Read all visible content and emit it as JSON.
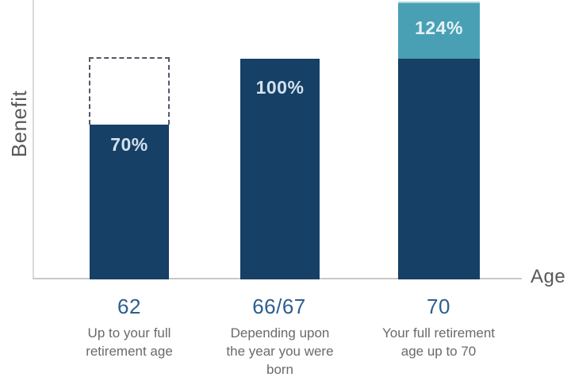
{
  "chart": {
    "y_axis_label": "Benefit",
    "x_axis_label": "Age",
    "bars": [
      {
        "tick": "62",
        "value_label": "70%",
        "caption_lines": [
          "Up to your full",
          "retirement age"
        ]
      },
      {
        "tick": "66/67",
        "value_label": "100%",
        "caption_lines": [
          "Depending upon",
          "the year you were",
          "born"
        ]
      },
      {
        "tick": "70",
        "value_label": "124%",
        "caption_lines": [
          "Your full retirement",
          "age up to 70"
        ]
      }
    ],
    "colors": {
      "bar_navy": "#164066",
      "bar_teal": "#49A0B4",
      "teal_top_highlight": "#A7D5DD",
      "bar_value_text": "#D3E1ED",
      "tick_blue": "#2D5E8E",
      "caption_gray": "#6A6A6A",
      "axis_label_gray": "#595959",
      "axis_line_gray": "#C8C8C8",
      "dashed_outline": "#4E5A68"
    }
  },
  "chart_data": {
    "type": "bar",
    "categories": [
      "62",
      "66/67",
      "70"
    ],
    "values": [
      70,
      100,
      124
    ],
    "value_labels": [
      "70%",
      "100%",
      "124%"
    ],
    "series": [
      {
        "name": "benefit-up-to-100-percent",
        "values": [
          70,
          100,
          100
        ],
        "color": "#164066"
      },
      {
        "name": "delayed-retirement-credits-above-100-percent",
        "values": [
          0,
          0,
          24
        ],
        "color": "#49A0B4"
      }
    ],
    "title": "",
    "xlabel": "Age",
    "ylabel": "Benefit",
    "ylim": [
      0,
      130
    ],
    "grid": false,
    "legend": "none",
    "category_captions": [
      "Up to your full retirement age",
      "Depending upon the year you were born",
      "Your full retirement age up to 70"
    ],
    "annotations": [
      "Dashed outline above the age-62 bar marks the 100% full-benefit level",
      "Teal segment on the age-70 bar shows the portion above 100%, reaching 124%"
    ]
  }
}
